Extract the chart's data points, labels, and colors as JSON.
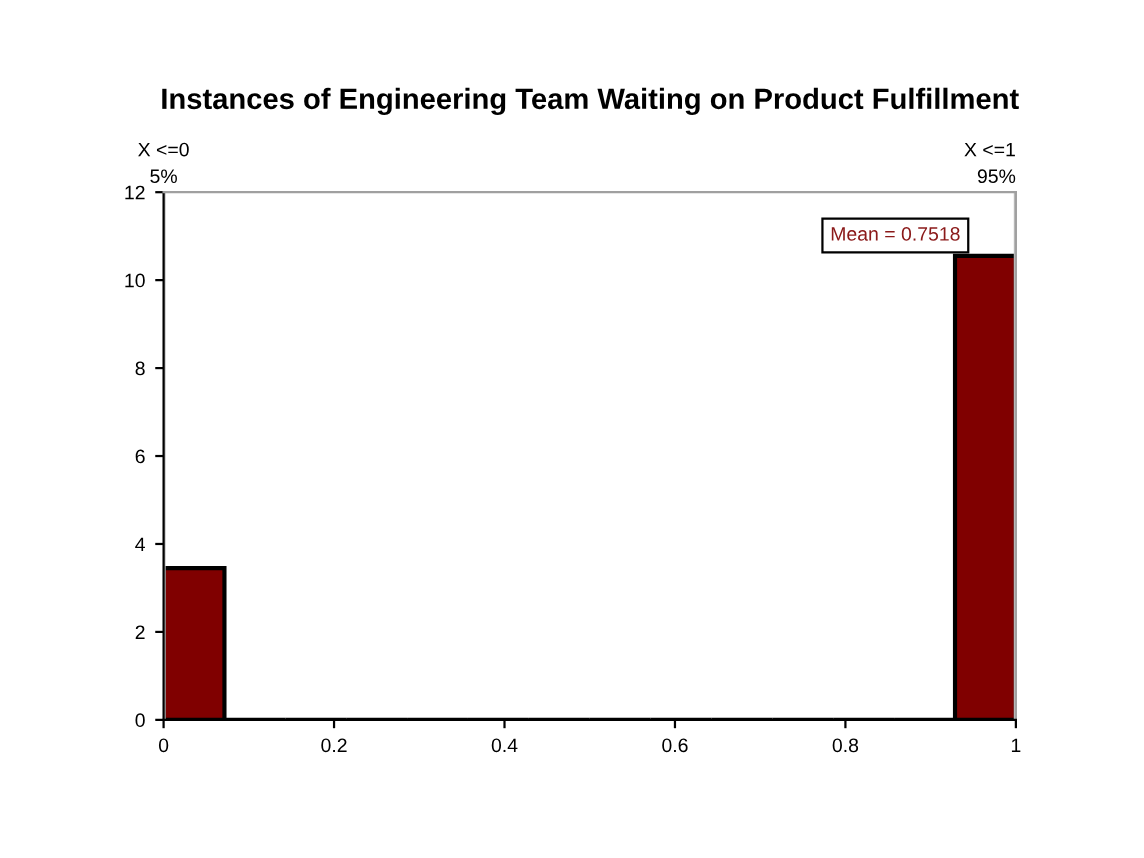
{
  "chart_data": {
    "type": "histogram",
    "title": "Instances of Engineering Team Waiting on Product Fulfillment",
    "bins": [
      0,
      0.0714,
      0.1429,
      0.2143,
      0.2857,
      0.3571,
      0.4286,
      0.5,
      0.5714,
      0.6429,
      0.7143,
      0.7857,
      0.8571,
      0.9286,
      1
    ],
    "values": [
      3.45,
      0,
      0,
      0,
      0,
      0,
      0,
      0,
      0,
      0,
      0,
      0,
      0,
      10.55
    ],
    "color": "#800000",
    "xlim": [
      0,
      1
    ],
    "xticks": [
      0,
      0.2,
      0.4,
      0.6,
      0.8,
      1
    ],
    "ylim": [
      0,
      12
    ],
    "yticks": [
      0,
      2,
      4,
      6,
      8,
      10,
      12
    ],
    "ref_lines": [
      {
        "axis": "x",
        "value": 0,
        "label": "X <=0\n5%",
        "color": "#c0c0c0"
      },
      {
        "axis": "x",
        "value": 1,
        "label": "X <=1\n95%",
        "color": "#c0c0c0"
      }
    ],
    "annotations": [
      "Mean = 0.7518"
    ],
    "grid": false
  }
}
